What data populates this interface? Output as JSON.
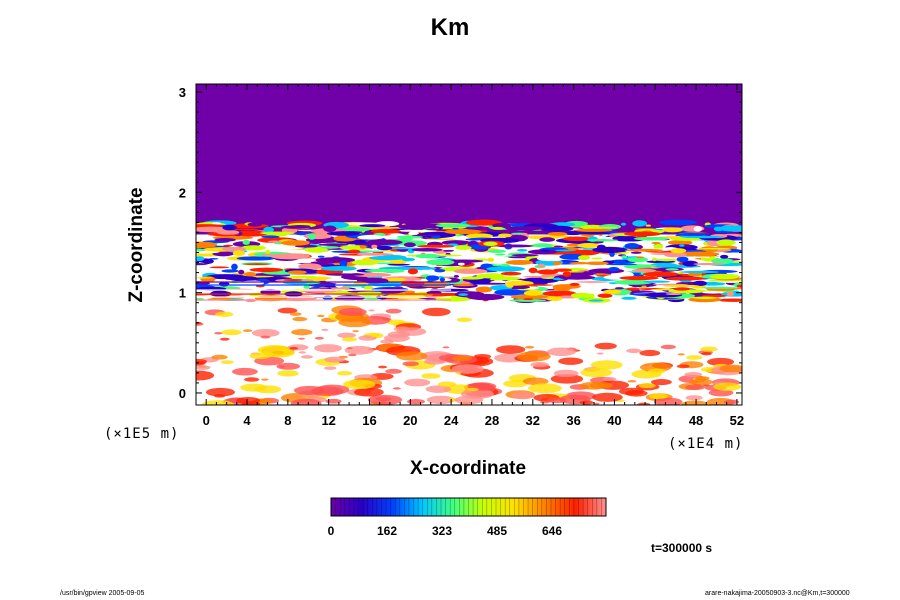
{
  "chart_data": {
    "type": "heatmap",
    "title": "Km",
    "xlabel": "X-coordinate",
    "ylabel": "Z-coordinate",
    "x_ticks": [
      "0",
      "4",
      "8",
      "12",
      "16",
      "20",
      "24",
      "28",
      "32",
      "36",
      "40",
      "44",
      "48",
      "52"
    ],
    "y_ticks": [
      "0",
      "1",
      "2",
      "3"
    ],
    "xlim": [
      -1,
      52.5
    ],
    "ylim": [
      -0.12,
      3.08
    ],
    "x_scale_label": "(×1E4 m)",
    "y_scale_label": "(×1E5 m)",
    "colorbar": {
      "ticks": [
        "0",
        "162",
        "323",
        "485",
        "646"
      ],
      "colors": [
        "#6a00a8",
        "#2a00c8",
        "#0040ff",
        "#00c8ff",
        "#40ff80",
        "#c8ff00",
        "#ffe000",
        "#ff8000",
        "#ff2000",
        "#ff9090"
      ]
    },
    "field_regions": [
      {
        "label": "uniform low values (purple)",
        "z_range": [
          1.6,
          3.08
        ],
        "value": 0
      },
      {
        "label": "turbulent layer (mixed colors)",
        "z_range": [
          0.9,
          1.72
        ]
      },
      {
        "label": "lower boundary layer patches (red/yellow)",
        "z_range": [
          -0.12,
          0.9
        ]
      }
    ],
    "annotation_time": "t=300000 s"
  },
  "footer": {
    "left": "/usr/bin/gpview 2005-09-05",
    "right": "arare-nakajima-20050903-3.nc@Km,t=300000"
  },
  "colors": {
    "background": "#ffffff",
    "upper_field": "#7000a8"
  }
}
